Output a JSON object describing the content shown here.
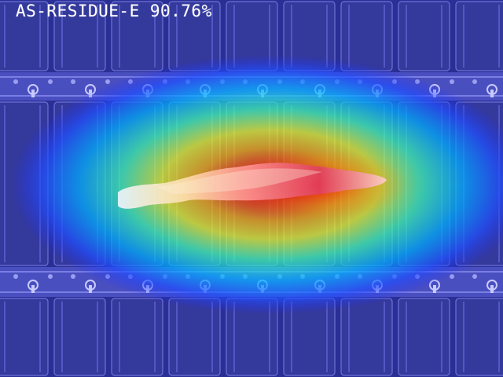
{
  "detection": {
    "label": "AS-RESIDUE-E 90.76%"
  },
  "colors": {
    "cell_fill": "#34399c",
    "bus_band": "#4a4fc0",
    "background": "#2a2f95",
    "heatmap_palette": "jet"
  }
}
